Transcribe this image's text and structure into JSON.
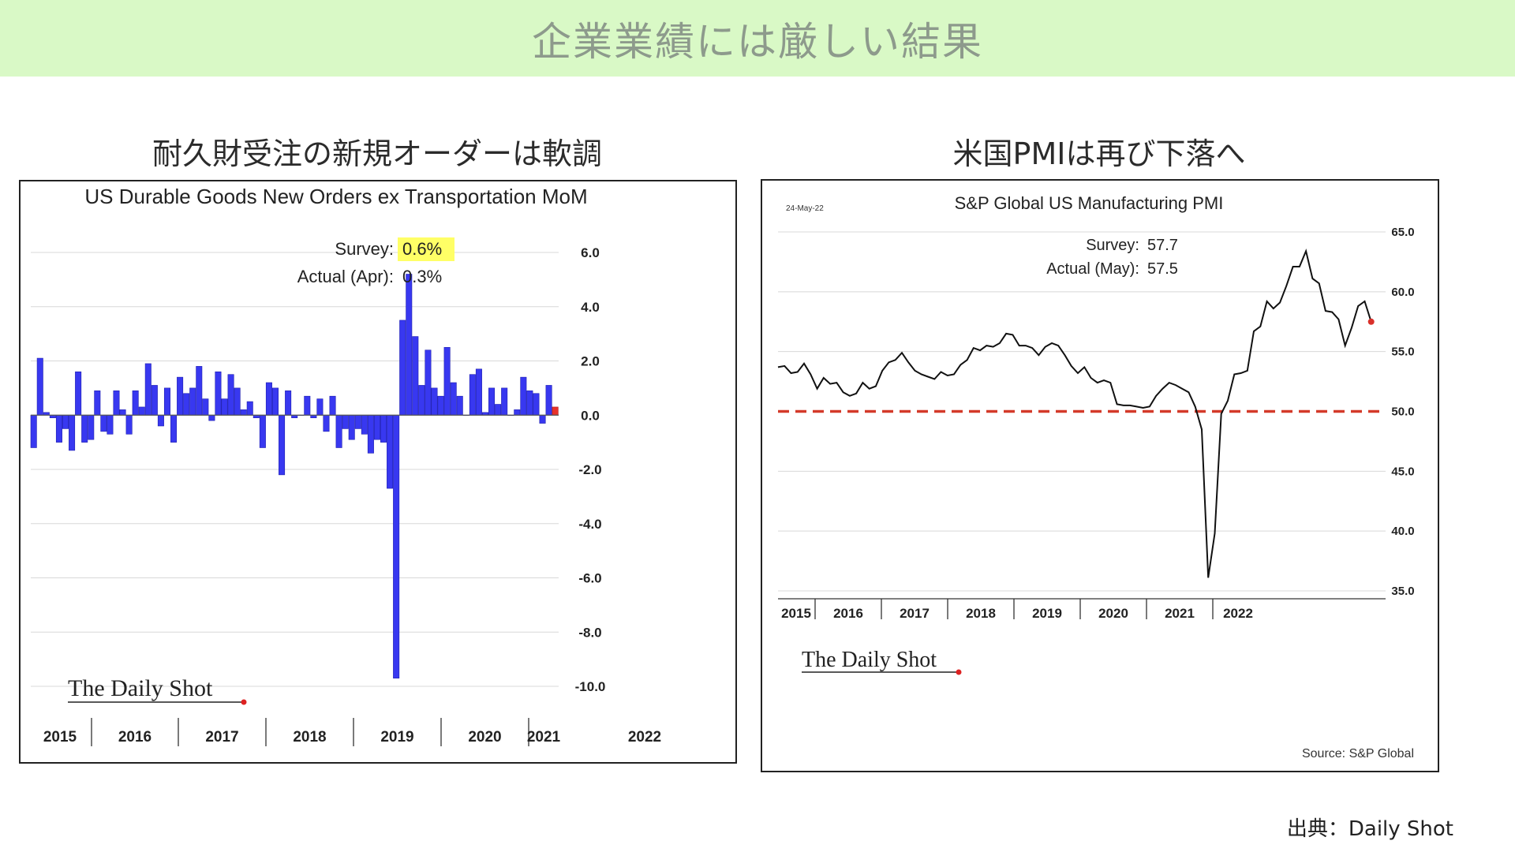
{
  "page": {
    "banner_title": "企業業績には厳しい結果",
    "left_heading": "耐久財受注の新規オーダーは軟調",
    "right_heading": "米国PMIは再び下落へ",
    "source_credit": "出典：Daily Shot"
  },
  "chart_data": [
    {
      "type": "bar",
      "title": "US Durable Goods New Orders ex Transportation MoM",
      "annotations": {
        "survey_label": "Survey:",
        "survey_value": "0.6%",
        "actual_label": "Actual (Apr):",
        "actual_value": "0.3%"
      },
      "logo": "The Daily Shot",
      "ylim": [
        -10,
        6
      ],
      "yticks": [
        6,
        4,
        2,
        0,
        -2,
        -4,
        -6,
        -8,
        -10
      ],
      "ytick_labels": [
        "6.0",
        "4.0",
        "2.0",
        "0.0",
        "-2.0",
        "-4.0",
        "-6.0",
        "-8.0",
        "-10.0"
      ],
      "year_labels": [
        "2015",
        "2016",
        "2017",
        "2018",
        "2019",
        "2020",
        "2021",
        "2022"
      ],
      "values": [
        -1.2,
        2.1,
        0.1,
        -0.1,
        -1.0,
        -0.5,
        -1.3,
        1.6,
        -1.0,
        -0.9,
        0.9,
        -0.6,
        -0.7,
        0.9,
        0.2,
        -0.7,
        0.9,
        0.3,
        1.9,
        1.1,
        -0.4,
        1.0,
        -1.0,
        1.4,
        0.8,
        1.0,
        1.8,
        0.6,
        -0.2,
        1.6,
        0.6,
        1.5,
        1.0,
        0.2,
        0.5,
        -0.1,
        -1.2,
        1.2,
        1.0,
        -2.2,
        0.9,
        -0.1,
        0.0,
        0.7,
        -0.1,
        0.6,
        -0.6,
        0.7,
        -1.2,
        -0.5,
        -0.9,
        -0.5,
        -0.7,
        -1.4,
        -0.9,
        -1.0,
        -2.7,
        -9.7,
        3.5,
        5.2,
        2.9,
        1.1,
        2.4,
        1.0,
        0.7,
        2.5,
        1.2,
        0.7,
        0.0,
        1.5,
        1.7,
        0.1,
        1.0,
        0.4,
        1.0,
        0.0,
        0.2,
        1.4,
        0.9,
        0.8,
        -0.3,
        1.1,
        0.3
      ],
      "highlight_last": true
    },
    {
      "type": "line",
      "title": "S&P Global US Manufacturing PMI",
      "date_label": "24-May-22",
      "annotations": {
        "survey_label": "Survey:",
        "survey_value": "57.7",
        "actual_label": "Actual (May):",
        "actual_value": "57.5"
      },
      "logo": "The Daily Shot",
      "source": "Source: S&P Global",
      "ylim": [
        35,
        65
      ],
      "yticks": [
        65,
        60,
        55,
        50,
        45,
        40,
        35
      ],
      "ytick_labels": [
        "65.0",
        "60.0",
        "55.0",
        "50.0",
        "45.0",
        "40.0",
        "35.0"
      ],
      "reference_line": 50,
      "year_labels": [
        "2015",
        "2016",
        "2017",
        "2018",
        "2019",
        "2020",
        "2021",
        "2022"
      ],
      "values": [
        53.7,
        53.8,
        53.2,
        53.3,
        54.0,
        53.1,
        51.9,
        52.8,
        52.3,
        52.4,
        51.6,
        51.3,
        51.5,
        52.4,
        51.9,
        52.1,
        53.4,
        54.1,
        54.3,
        54.9,
        54.1,
        53.4,
        53.1,
        52.9,
        52.7,
        53.3,
        53.0,
        53.1,
        53.9,
        54.3,
        55.3,
        55.1,
        55.5,
        55.4,
        55.7,
        56.5,
        56.4,
        55.5,
        55.5,
        55.3,
        54.7,
        55.4,
        55.7,
        55.5,
        54.7,
        53.8,
        53.2,
        53.7,
        52.8,
        52.4,
        52.6,
        52.4,
        50.6,
        50.5,
        50.5,
        50.4,
        50.3,
        50.4,
        51.3,
        51.9,
        52.4,
        52.2,
        51.9,
        51.6,
        50.4,
        48.5,
        36.1,
        39.8,
        49.8,
        50.9,
        53.1,
        53.2,
        53.4,
        56.7,
        57.1,
        59.2,
        58.6,
        59.1,
        60.5,
        62.1,
        62.1,
        63.4,
        61.1,
        60.7,
        58.4,
        58.3,
        57.7,
        55.5,
        57.0,
        58.8,
        59.2,
        57.5
      ]
    }
  ]
}
